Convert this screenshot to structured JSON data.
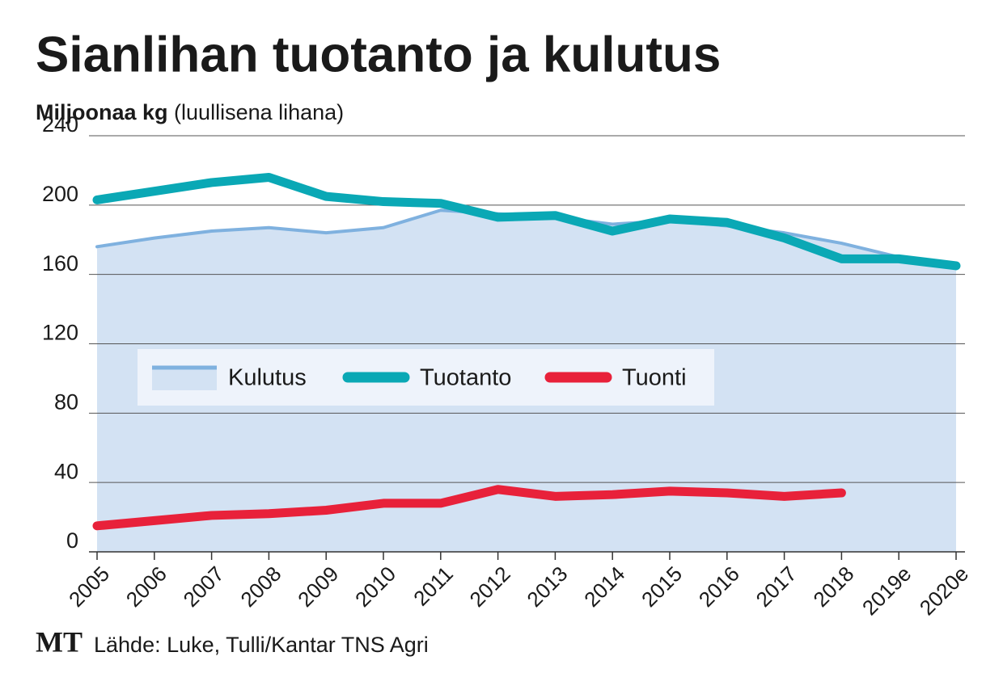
{
  "chart_data": {
    "type": "line",
    "title": "Sianlihan tuotanto ja kulutus",
    "subtitle": "Miljoonaa kg",
    "subtitle_note": "(luullisena lihana)",
    "source": "Lähde: Luke, Tulli/Kantar TNS Agri",
    "logo": "MT",
    "categories": [
      "2005",
      "2006",
      "2007",
      "2008",
      "2009",
      "2010",
      "2011",
      "2012",
      "2013",
      "2014",
      "2015",
      "2016",
      "2017",
      "2018",
      "2019e",
      "2020e"
    ],
    "series": [
      {
        "name": "Kulutus",
        "style": "area",
        "color": "#7fb1df",
        "fill": "#d3e2f3",
        "values": [
          176,
          181,
          185,
          187,
          184,
          187,
          197,
          195,
          193,
          189,
          191,
          188,
          184,
          178,
          170,
          164
        ]
      },
      {
        "name": "Tuotanto",
        "style": "line",
        "color": "#0aa8b5",
        "values": [
          203,
          208,
          213,
          216,
          205,
          202,
          201,
          193,
          194,
          185,
          192,
          190,
          181,
          169,
          169,
          165
        ]
      },
      {
        "name": "Tuonti",
        "style": "line",
        "color": "#e8213a",
        "values": [
          15,
          18,
          21,
          22,
          24,
          28,
          28,
          36,
          32,
          33,
          35,
          34,
          32,
          34,
          null,
          null
        ]
      }
    ],
    "ylim": [
      0,
      240
    ],
    "yticks": [
      0,
      40,
      80,
      120,
      160,
      200,
      240
    ],
    "grid": true
  }
}
